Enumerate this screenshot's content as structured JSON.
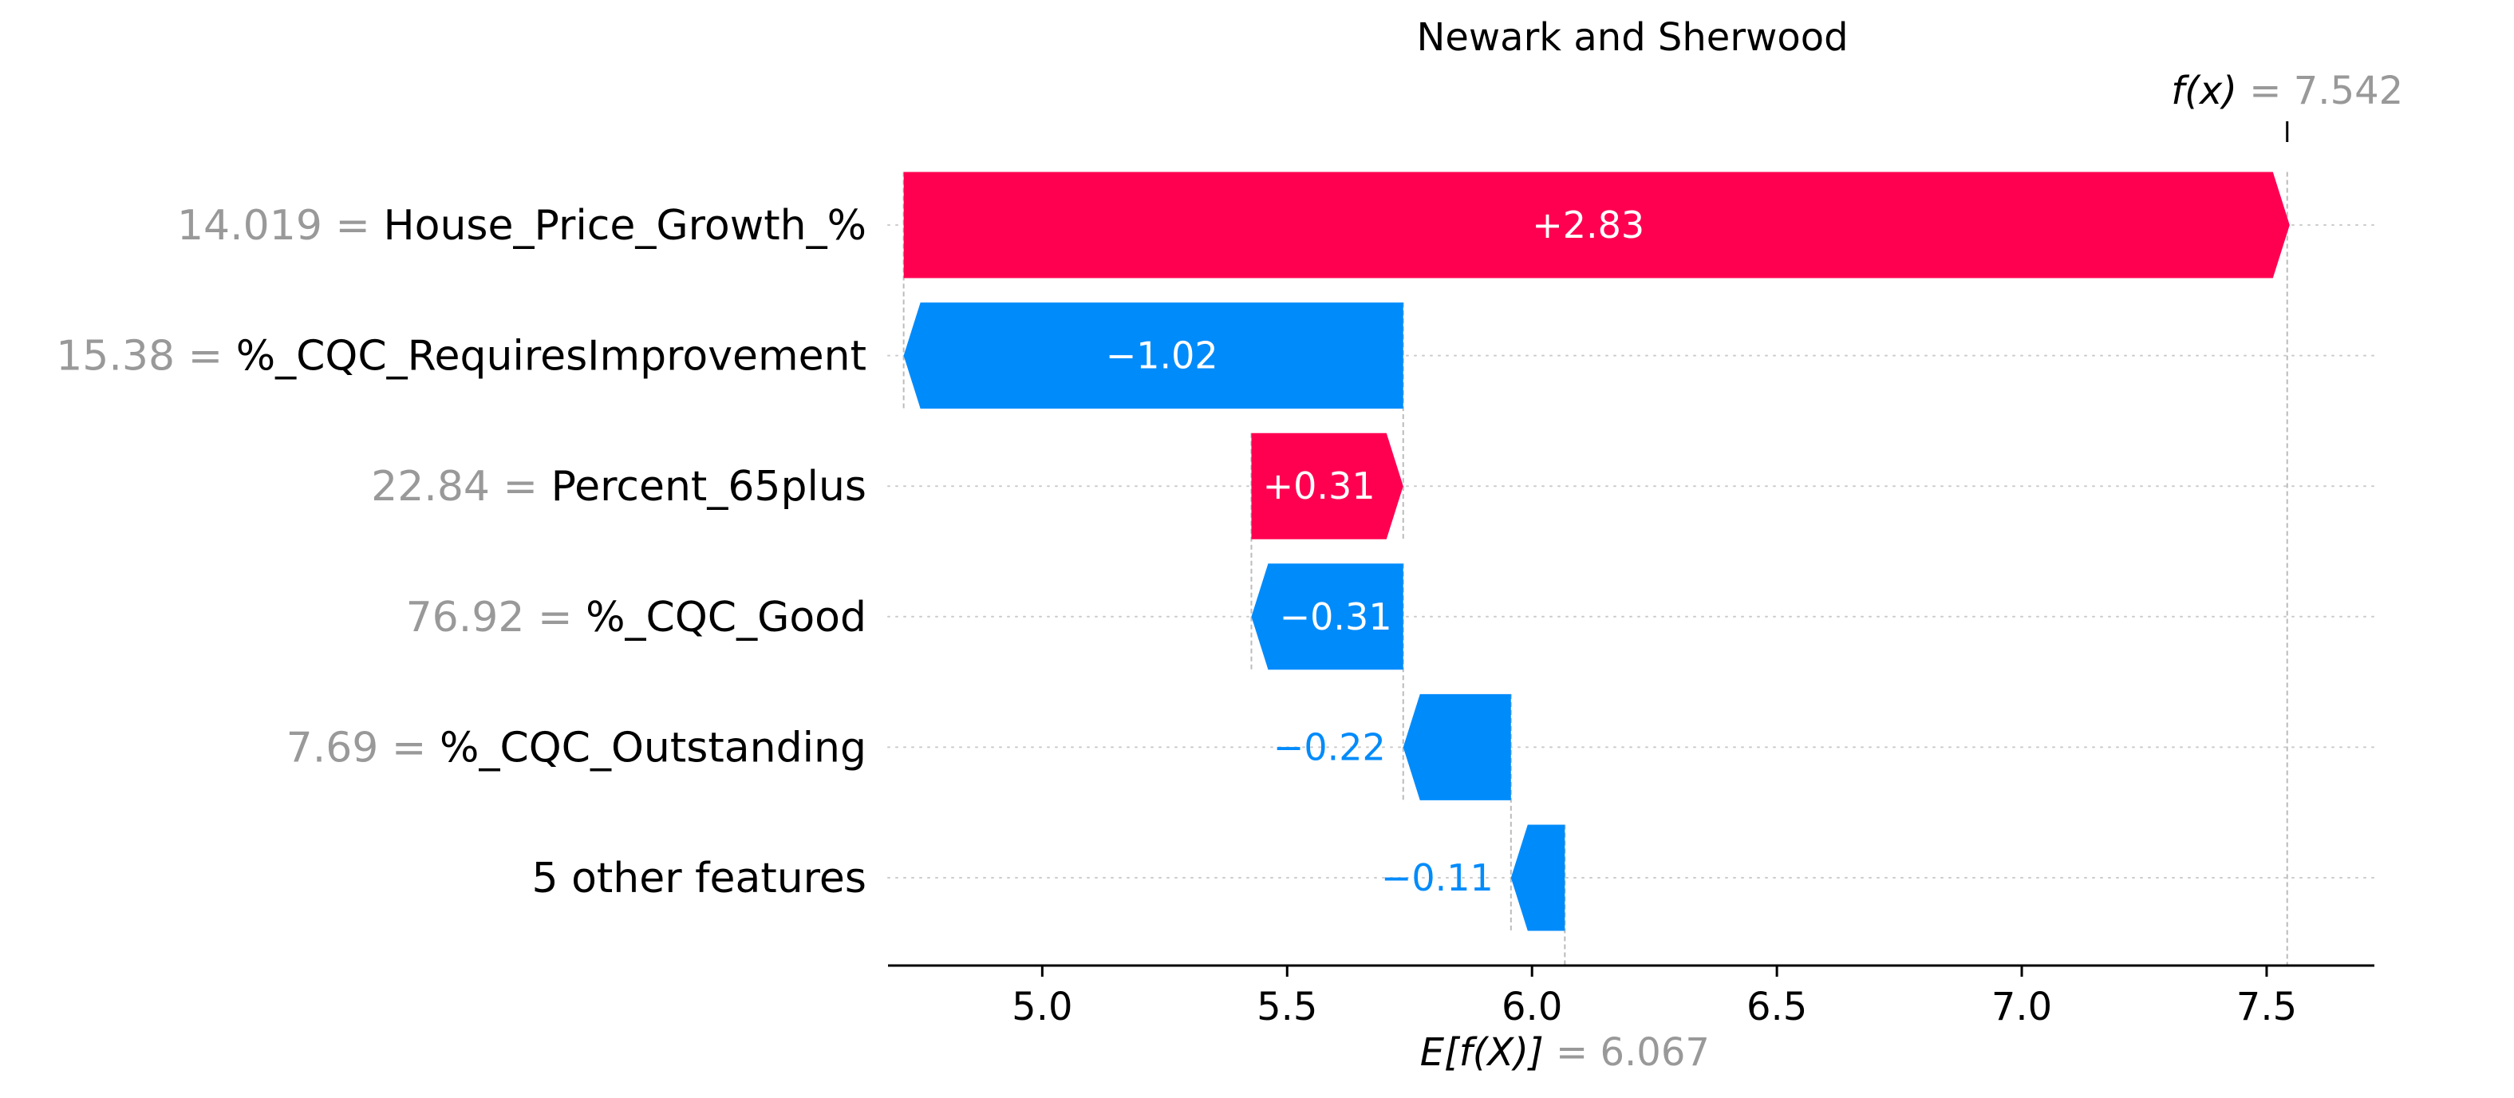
{
  "chart_data": {
    "type": "waterfall",
    "title": "Newark and Sherwood",
    "base_value": 6.067,
    "base_value_text": "6.067",
    "base_label": "E[f(X)]",
    "output_value": 7.542,
    "output_value_text": "7.542",
    "output_label": "f(x)",
    "xlim": [
      4.685,
      7.72
    ],
    "xticks": [
      5.0,
      5.5,
      6.0,
      6.5,
      7.0,
      7.5
    ],
    "xtick_labels": [
      "5.0",
      "5.5",
      "6.0",
      "6.5",
      "7.0",
      "7.5"
    ],
    "features": [
      {
        "value_text": "14.019",
        "name": "House_Price_Growth_%",
        "shap": 2.83,
        "label": "+2.83"
      },
      {
        "value_text": "15.38",
        "name": "%_CQC_RequiresImprovement",
        "shap": -1.02,
        "label": "−1.02"
      },
      {
        "value_text": "22.84",
        "name": "Percent_65plus",
        "shap": 0.31,
        "label": "+0.31"
      },
      {
        "value_text": "76.92",
        "name": "%_CQC_Good",
        "shap": -0.31,
        "label": "−0.31"
      },
      {
        "value_text": "7.69",
        "name": "%_CQC_Outstanding",
        "shap": -0.22,
        "label": "−0.22"
      },
      {
        "value_text": "",
        "name": "5 other features",
        "shap": -0.11,
        "label": "−0.11"
      }
    ],
    "colors": {
      "positive": "#ff0051",
      "negative": "#008bfb",
      "feature_value_text": "#999999",
      "text": "#000000"
    }
  }
}
